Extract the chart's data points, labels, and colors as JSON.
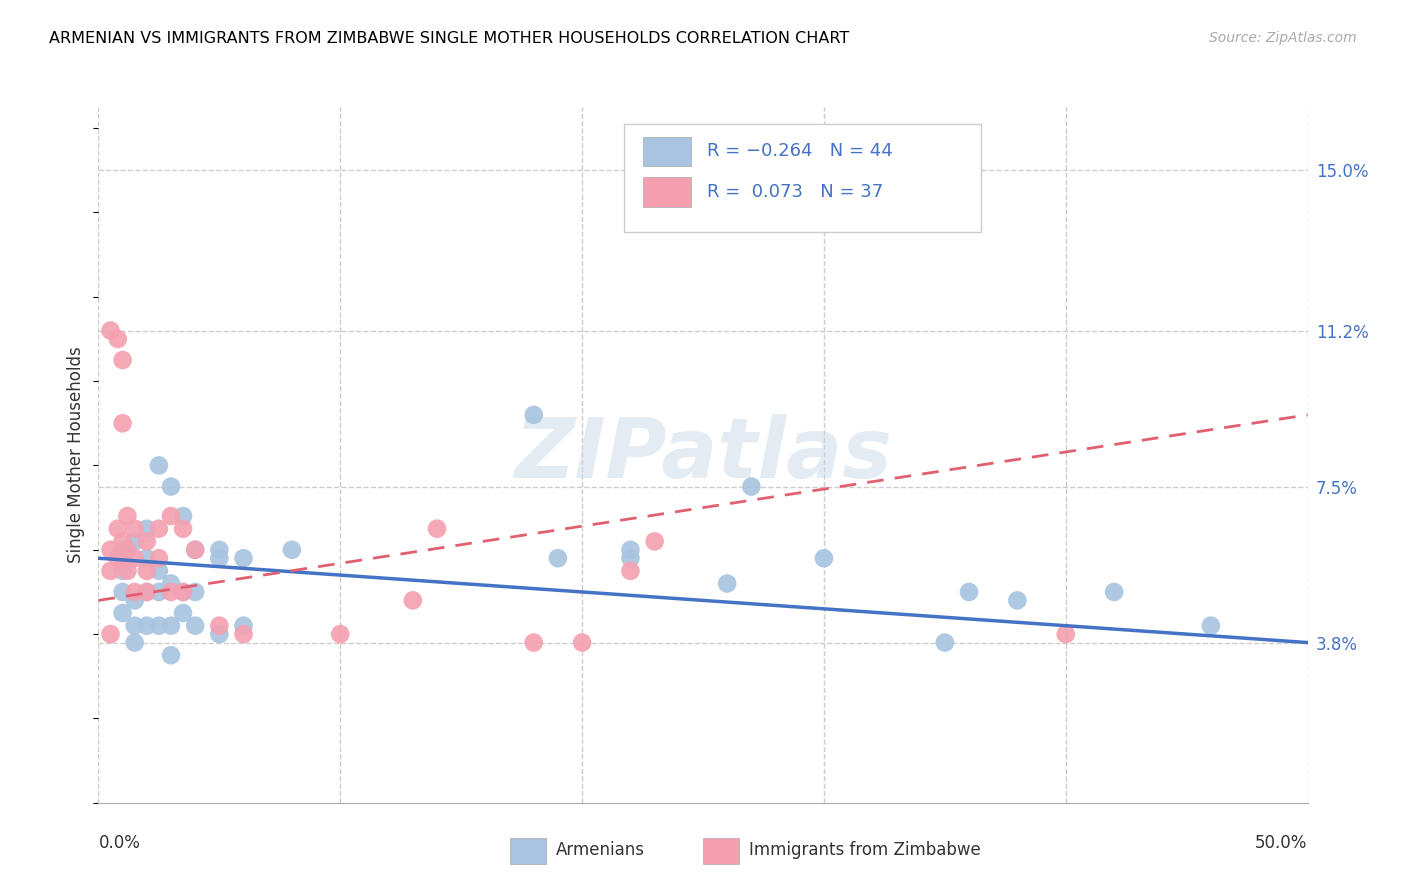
{
  "title": "ARMENIAN VS IMMIGRANTS FROM ZIMBABWE SINGLE MOTHER HOUSEHOLDS CORRELATION CHART",
  "source": "Source: ZipAtlas.com",
  "ylabel": "Single Mother Households",
  "ytick_labels": [
    "3.8%",
    "7.5%",
    "11.2%",
    "15.0%"
  ],
  "ytick_values": [
    3.8,
    7.5,
    11.2,
    15.0
  ],
  "xlim": [
    0.0,
    50.0
  ],
  "ylim": [
    0.0,
    16.5
  ],
  "legend_label_armenian": "Armenians",
  "legend_label_zimbabwe": "Immigrants from Zimbabwe",
  "watermark": "ZIPatlas",
  "armenian_color": "#a8c4e0",
  "armenian_line_color": "#4472c4",
  "zimbabwe_color": "#f4a0b0",
  "zimbabwe_line_color": "#e06070",
  "armenian_scatter": [
    [
      1.0,
      6.0
    ],
    [
      1.0,
      5.5
    ],
    [
      1.0,
      5.0
    ],
    [
      1.0,
      4.5
    ],
    [
      1.5,
      6.2
    ],
    [
      1.5,
      4.8
    ],
    [
      1.5,
      4.2
    ],
    [
      1.5,
      3.8
    ],
    [
      2.0,
      6.5
    ],
    [
      2.0,
      5.8
    ],
    [
      2.0,
      5.0
    ],
    [
      2.0,
      4.2
    ],
    [
      2.5,
      8.0
    ],
    [
      2.5,
      5.5
    ],
    [
      2.5,
      5.0
    ],
    [
      2.5,
      4.2
    ],
    [
      3.0,
      7.5
    ],
    [
      3.0,
      5.2
    ],
    [
      3.0,
      4.2
    ],
    [
      3.0,
      3.5
    ],
    [
      3.5,
      6.8
    ],
    [
      3.5,
      5.0
    ],
    [
      3.5,
      4.5
    ],
    [
      4.0,
      6.0
    ],
    [
      4.0,
      5.0
    ],
    [
      4.0,
      4.2
    ],
    [
      5.0,
      6.0
    ],
    [
      5.0,
      5.8
    ],
    [
      5.0,
      4.0
    ],
    [
      6.0,
      5.8
    ],
    [
      6.0,
      4.2
    ],
    [
      8.0,
      6.0
    ],
    [
      18.0,
      9.2
    ],
    [
      19.0,
      5.8
    ],
    [
      22.0,
      6.0
    ],
    [
      22.0,
      5.8
    ],
    [
      26.0,
      5.2
    ],
    [
      27.0,
      7.5
    ],
    [
      30.0,
      5.8
    ],
    [
      35.0,
      3.8
    ],
    [
      36.0,
      5.0
    ],
    [
      38.0,
      4.8
    ],
    [
      42.0,
      5.0
    ],
    [
      46.0,
      4.2
    ]
  ],
  "zimbabwe_scatter": [
    [
      0.5,
      11.2
    ],
    [
      0.5,
      6.0
    ],
    [
      0.5,
      5.5
    ],
    [
      0.5,
      4.0
    ],
    [
      0.8,
      11.0
    ],
    [
      0.8,
      6.5
    ],
    [
      0.8,
      5.8
    ],
    [
      1.0,
      10.5
    ],
    [
      1.0,
      9.0
    ],
    [
      1.0,
      6.2
    ],
    [
      1.0,
      5.8
    ],
    [
      1.2,
      6.8
    ],
    [
      1.2,
      6.0
    ],
    [
      1.2,
      5.5
    ],
    [
      1.5,
      6.5
    ],
    [
      1.5,
      5.8
    ],
    [
      1.5,
      5.0
    ],
    [
      2.0,
      6.2
    ],
    [
      2.0,
      5.5
    ],
    [
      2.0,
      5.0
    ],
    [
      2.5,
      6.5
    ],
    [
      2.5,
      5.8
    ],
    [
      3.0,
      6.8
    ],
    [
      3.0,
      5.0
    ],
    [
      3.5,
      6.5
    ],
    [
      3.5,
      5.0
    ],
    [
      4.0,
      6.0
    ],
    [
      5.0,
      4.2
    ],
    [
      6.0,
      4.0
    ],
    [
      10.0,
      4.0
    ],
    [
      13.0,
      4.8
    ],
    [
      14.0,
      6.5
    ],
    [
      18.0,
      3.8
    ],
    [
      20.0,
      3.8
    ],
    [
      22.0,
      5.5
    ],
    [
      23.0,
      6.2
    ],
    [
      40.0,
      4.0
    ]
  ],
  "armenian_trend": {
    "x_start": 0.0,
    "y_start": 5.8,
    "x_end": 50.0,
    "y_end": 3.8
  },
  "zimbabwe_trend": {
    "x_start": 0.0,
    "y_start": 4.8,
    "x_end": 50.0,
    "y_end": 9.2
  },
  "grid_yticks": [
    3.8,
    7.5,
    11.2,
    15.0
  ],
  "grid_xticks": [
    0,
    10,
    20,
    30,
    40,
    50
  ],
  "grid_color": "#cccccc",
  "background_color": "#ffffff"
}
